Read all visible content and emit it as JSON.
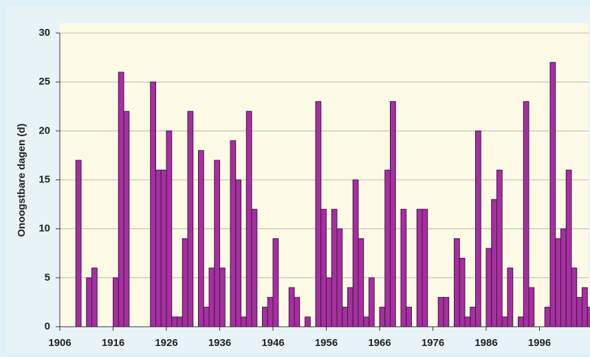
{
  "chart_data": {
    "type": "bar",
    "y_label": "Onoogstbare dagen (d)",
    "color": "#a3319e",
    "grid": true,
    "x": [
      1909,
      1911,
      1912,
      1916,
      1917,
      1918,
      1923,
      1924,
      1925,
      1926,
      1927,
      1928,
      1929,
      1930,
      1932,
      1933,
      1934,
      1935,
      1936,
      1938,
      1939,
      1940,
      1941,
      1942,
      1944,
      1945,
      1946,
      1949,
      1950,
      1952,
      1954,
      1955,
      1956,
      1957,
      1958,
      1959,
      1960,
      1961,
      1962,
      1963,
      1964,
      1966,
      1967,
      1968,
      1970,
      1971,
      1973,
      1974,
      1977,
      1978,
      1980,
      1981,
      1982,
      1983,
      1984,
      1986,
      1987,
      1988,
      1989,
      1990,
      1992,
      1993,
      1994,
      1997,
      1998,
      1999,
      2000,
      2001,
      2002,
      2003,
      2004,
      2005
    ],
    "values": [
      17,
      5,
      6,
      5,
      26,
      22,
      25,
      16,
      16,
      20,
      1,
      1,
      9,
      22,
      18,
      2,
      6,
      17,
      6,
      19,
      15,
      1,
      22,
      12,
      2,
      3,
      9,
      4,
      3,
      1,
      23,
      12,
      5,
      12,
      10,
      2,
      4,
      15,
      9,
      1,
      5,
      2,
      16,
      23,
      12,
      2,
      12,
      12,
      3,
      3,
      9,
      7,
      1,
      2,
      20,
      8,
      13,
      16,
      1,
      6,
      1,
      23,
      4,
      2,
      27,
      9,
      10,
      16,
      6,
      3,
      4,
      2
    ],
    "xlim": [
      1906,
      2006
    ],
    "xticks": [
      1906,
      1916,
      1926,
      1936,
      1946,
      1956,
      1966,
      1976,
      1986,
      1996
    ],
    "ylim": [
      0,
      30
    ],
    "yticks": [
      0,
      5,
      10,
      15,
      20,
      25,
      30
    ]
  }
}
